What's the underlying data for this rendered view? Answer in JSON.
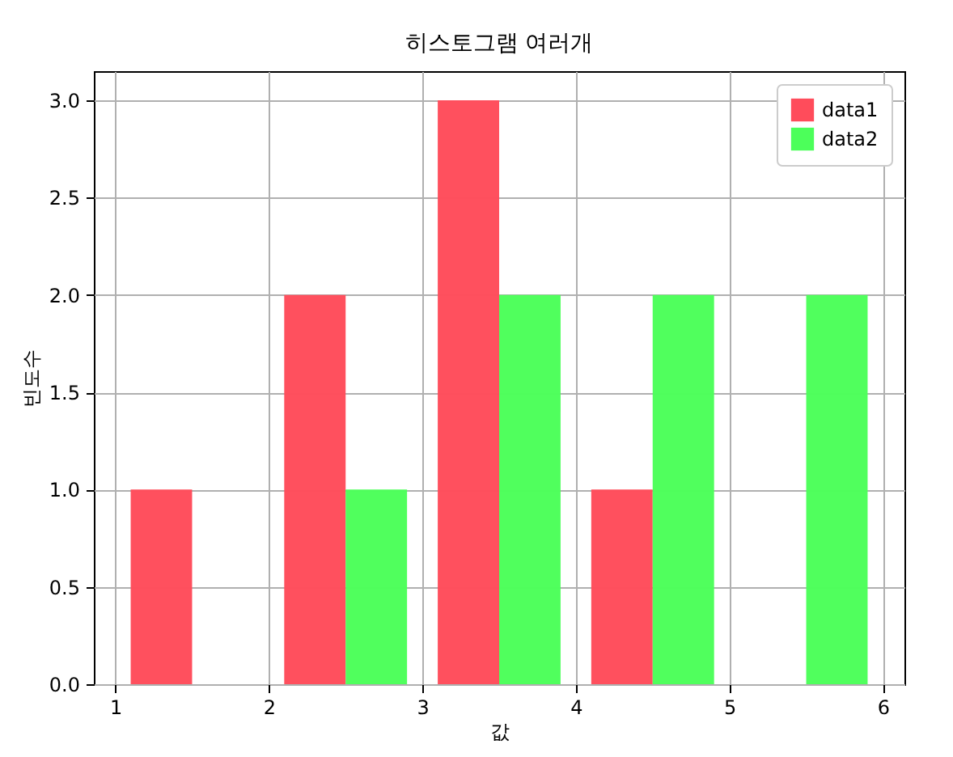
{
  "chart_data": {
    "type": "histogram",
    "title": "히스토그램 여러개",
    "xlabel": "값",
    "ylabel": "빈도수",
    "bins": [
      1,
      2,
      3,
      4,
      5,
      6
    ],
    "series": [
      {
        "name": "data1",
        "color": "#ff4c5b",
        "values": [
          1,
          2,
          3,
          1,
          0
        ]
      },
      {
        "name": "data2",
        "color": "#4cff5a",
        "values": [
          0,
          1,
          2,
          2,
          2
        ]
      }
    ],
    "xlim": [
      0.86,
      6.14
    ],
    "xticks": [
      1,
      2,
      3,
      4,
      5,
      6
    ],
    "ylim": [
      0,
      3.15
    ],
    "yticks": [
      {
        "value": 0,
        "label": "0.0"
      },
      {
        "value": 0.5,
        "label": "0.5"
      },
      {
        "value": 1,
        "label": "1.0"
      },
      {
        "value": 1.5,
        "label": "1.5"
      },
      {
        "value": 2,
        "label": "2.0"
      },
      {
        "value": 2.5,
        "label": "2.5"
      },
      {
        "value": 3,
        "label": "3.0"
      }
    ],
    "grid": true,
    "legend": "top right"
  }
}
